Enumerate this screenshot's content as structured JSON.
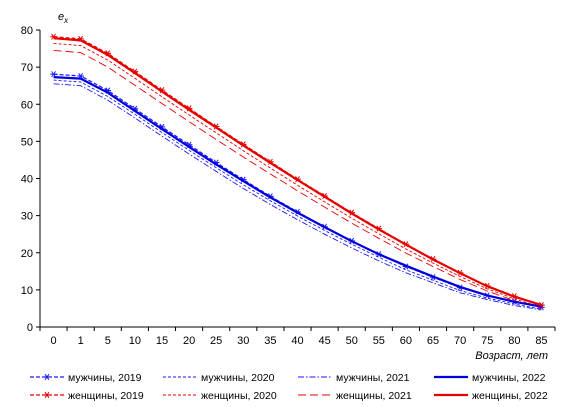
{
  "chart_data": {
    "type": "line",
    "title": "",
    "ylabel": "e",
    "ylabel_sub": "x",
    "xlabel": "Возраст, лет",
    "ylim": [
      0,
      80
    ],
    "yticks": [
      0,
      10,
      20,
      30,
      40,
      50,
      60,
      70,
      80
    ],
    "x": [
      0,
      1,
      5,
      10,
      15,
      20,
      25,
      30,
      35,
      40,
      45,
      50,
      55,
      60,
      65,
      70,
      75,
      80,
      85
    ],
    "grid": "none",
    "legend_position": "bottom",
    "series": [
      {
        "name": "мужчины, 2019",
        "color": "#1a1aff",
        "style": "dash-star",
        "values": [
          68.1,
          67.6,
          63.7,
          58.8,
          53.9,
          49.1,
          44.3,
          39.7,
          35.2,
          31.0,
          27.0,
          23.2,
          19.6,
          16.3,
          13.4,
          10.6,
          8.5,
          6.9,
          5.3
        ]
      },
      {
        "name": "мужчины, 2020",
        "color": "#1a1aff",
        "style": "dash",
        "values": [
          66.5,
          66.0,
          62.1,
          57.3,
          52.4,
          47.6,
          42.9,
          38.3,
          34.0,
          29.9,
          26.0,
          22.3,
          18.8,
          15.4,
          12.6,
          9.8,
          7.8,
          6.2,
          4.8
        ]
      },
      {
        "name": "мужчины, 2021",
        "color": "#1a1aff",
        "style": "dashdot",
        "values": [
          65.5,
          65.0,
          61.1,
          56.3,
          51.4,
          46.6,
          41.9,
          37.3,
          33.0,
          28.9,
          25.0,
          21.3,
          17.8,
          14.6,
          11.9,
          9.2,
          7.4,
          5.8,
          4.6
        ]
      },
      {
        "name": "мужчины, 2022",
        "color": "#0000dd",
        "style": "solid",
        "values": [
          67.3,
          66.9,
          63.1,
          58.2,
          53.3,
          48.5,
          43.8,
          39.3,
          34.9,
          30.8,
          26.9,
          23.1,
          19.6,
          16.5,
          13.6,
          10.8,
          8.5,
          6.8,
          5.5
        ]
      },
      {
        "name": "женщины, 2019",
        "color": "#e60000",
        "style": "dash-star",
        "values": [
          78.2,
          77.6,
          73.7,
          68.8,
          63.8,
          58.9,
          54.0,
          49.2,
          44.5,
          39.8,
          35.3,
          30.8,
          26.5,
          22.3,
          18.3,
          14.6,
          11.1,
          8.3,
          5.9
        ]
      },
      {
        "name": "женщины, 2020",
        "color": "#e60000",
        "style": "dash",
        "values": [
          76.4,
          75.8,
          71.9,
          67.0,
          62.0,
          57.1,
          52.3,
          47.5,
          42.8,
          38.2,
          33.7,
          29.3,
          25.1,
          21.0,
          17.2,
          13.6,
          10.3,
          7.6,
          5.3
        ]
      },
      {
        "name": "женщины, 2021",
        "color": "#e60000",
        "style": "longdash",
        "values": [
          74.5,
          73.9,
          70.0,
          65.1,
          60.2,
          55.3,
          50.5,
          45.8,
          41.2,
          36.7,
          32.3,
          28.0,
          23.9,
          19.9,
          16.3,
          12.8,
          9.7,
          7.1,
          5.0
        ]
      },
      {
        "name": "женщины, 2022",
        "color": "#e60000",
        "style": "solid",
        "values": [
          77.8,
          77.2,
          73.3,
          68.4,
          63.4,
          58.5,
          53.7,
          48.9,
          44.2,
          39.6,
          35.1,
          30.6,
          26.3,
          22.2,
          18.2,
          14.5,
          11.0,
          8.2,
          5.9
        ]
      }
    ]
  }
}
